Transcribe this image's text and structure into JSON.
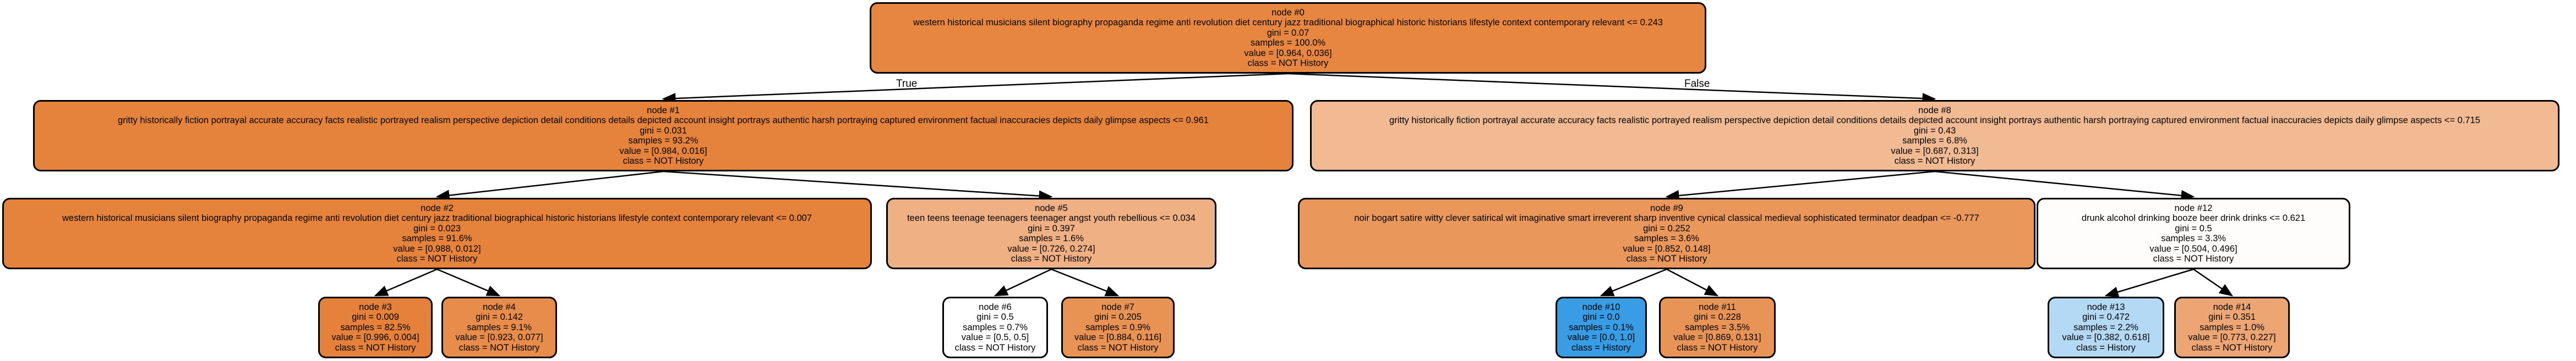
{
  "colors": {
    "edge": "#000000",
    "border": "#000000"
  },
  "edge_labels": {
    "true_label": "True",
    "false_label": "False"
  },
  "nodes": {
    "n0": {
      "name": "node #0",
      "condition": "western historical musicians silent biography propaganda regime anti revolution diet century jazz traditional biographical historic historians lifestyle context contemporary relevant  <= 0.243",
      "gini": "gini = 0.07",
      "samples": "samples = 100.0%",
      "value": "value = [0.964, 0.036]",
      "class": "class = NOT History",
      "color": "#e68641"
    },
    "n1": {
      "name": "node #1",
      "condition": "gritty historically fiction portrayal accurate accuracy facts realistic portrayed realism perspective depiction detail conditions details depicted account insight portrays authentic harsh portraying captured environment factual inaccuracies depicts daily glimpse aspects  <= 0.961",
      "gini": "gini = 0.031",
      "samples": "samples = 93.2%",
      "value": "value = [0.984, 0.016]",
      "class": "class = NOT History",
      "color": "#e5833c"
    },
    "n8": {
      "name": "node #8",
      "condition": "gritty historically fiction portrayal accurate accuracy facts realistic portrayed realism perspective depiction detail conditions details depicted account insight portrays authentic harsh portraying captured environment factual inaccuracies depicts daily glimpse aspects  <= 0.715",
      "gini": "gini = 0.43",
      "samples": "samples = 6.8%",
      "value": "value = [0.687, 0.313]",
      "class": "class = NOT History",
      "color": "#f1ba93"
    },
    "n2": {
      "name": "node #2",
      "condition": "western historical musicians silent biography propaganda regime anti revolution diet century jazz traditional biographical historic historians lifestyle context contemporary relevant  <= 0.007",
      "gini": "gini = 0.023",
      "samples": "samples = 91.6%",
      "value": "value = [0.988, 0.012]",
      "class": "class = NOT History",
      "color": "#e5823b"
    },
    "n5": {
      "name": "node #5",
      "condition": "teen teens teenage teenagers teenager angst youth rebellious  <= 0.034",
      "gini": "gini = 0.397",
      "samples": "samples = 1.6%",
      "value": "value = [0.726, 0.274]",
      "class": "class = NOT History",
      "color": "#efb184"
    },
    "n9": {
      "name": "node #9",
      "condition": "noir bogart satire witty clever satirical wit imaginative smart irreverent sharp inventive cynical classical medieval sophisticated terminator deadpan  <= -0.777",
      "gini": "gini = 0.252",
      "samples": "samples = 3.6%",
      "value": "value = [0.852, 0.148]",
      "class": "class = NOT History",
      "color": "#ea975b"
    },
    "n12": {
      "name": "node #12",
      "condition": "drunk alcohol drinking booze beer drink drinks  <= 0.621",
      "gini": "gini = 0.5",
      "samples": "samples = 3.3%",
      "value": "value = [0.504, 0.496]",
      "class": "class = NOT History",
      "color": "#fffdfc"
    },
    "n3": {
      "name": "node #3",
      "gini": "gini = 0.009",
      "samples": "samples = 82.5%",
      "value": "value = [0.996, 0.004]",
      "class": "class = NOT History",
      "color": "#e5813a"
    },
    "n4": {
      "name": "node #4",
      "gini": "gini = 0.142",
      "samples": "samples = 9.1%",
      "value": "value = [0.923, 0.077]",
      "class": "class = NOT History",
      "color": "#e78c4a"
    },
    "n6": {
      "name": "node #6",
      "gini": "gini = 0.5",
      "samples": "samples = 0.7%",
      "value": "value = [0.5, 0.5]",
      "class": "class = NOT History",
      "color": "#ffffff"
    },
    "n7": {
      "name": "node #7",
      "gini": "gini = 0.205",
      "samples": "samples = 0.9%",
      "value": "value = [0.884, 0.116]",
      "class": "class = NOT History",
      "color": "#e89253"
    },
    "n10": {
      "name": "node #10",
      "gini": "gini = 0.0",
      "samples": "samples = 0.1%",
      "value": "value = [0.0, 1.0]",
      "class": "class = History",
      "color": "#399de5"
    },
    "n11": {
      "name": "node #11",
      "gini": "gini = 0.228",
      "samples": "samples = 3.5%",
      "value": "value = [0.869, 0.131]",
      "class": "class = NOT History",
      "color": "#e99457"
    },
    "n13": {
      "name": "node #13",
      "gini": "gini = 0.472",
      "samples": "samples = 2.2%",
      "value": "value = [0.382, 0.618]",
      "class": "class = History",
      "color": "#b3d9f5"
    },
    "n14": {
      "name": "node #14",
      "gini": "gini = 0.351",
      "samples": "samples = 1.0%",
      "value": "value = [0.773, 0.227]",
      "class": "class = NOT History",
      "color": "#eda673"
    }
  }
}
